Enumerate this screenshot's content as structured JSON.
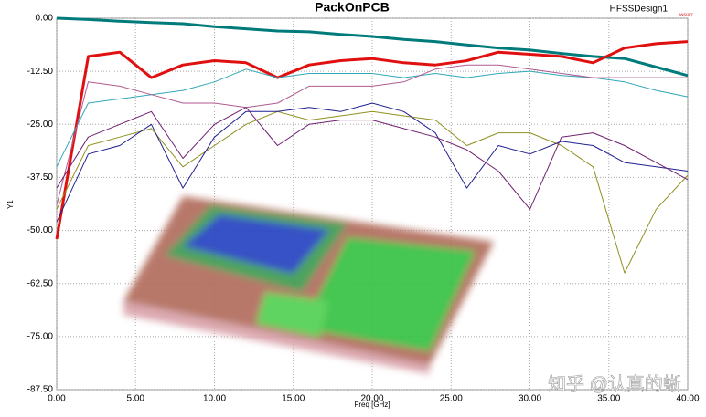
{
  "chart_data": {
    "type": "line",
    "title": "PackOnPCB",
    "design_label": "HFSSDesign1",
    "logo": "ANSOFT",
    "x_label": "Freq [GHz]",
    "y_label": "Y1",
    "watermark": "知乎 @认真的蜥",
    "x": [
      0,
      2,
      4,
      6,
      8,
      10,
      12,
      14,
      16,
      18,
      20,
      22,
      24,
      26,
      28,
      30,
      32,
      34,
      36,
      38,
      40
    ],
    "series": [
      {
        "color": "#007b7b",
        "width": 3,
        "values": [
          0,
          -0.3,
          -0.7,
          -1,
          -1.3,
          -2,
          -2.5,
          -3,
          -3.2,
          -3.8,
          -4.3,
          -5,
          -5.5,
          -6.3,
          -7,
          -7.5,
          -8.3,
          -9,
          -9.5,
          -11.5,
          -13.5
        ]
      },
      {
        "color": "#e01010",
        "width": 3,
        "values": [
          -52,
          -9,
          -8,
          -14,
          -11,
          -10,
          -10.5,
          -14,
          -11,
          -10,
          -9.5,
          -10.5,
          -11,
          -10,
          -8,
          -8.5,
          -9,
          -10.5,
          -7,
          -6,
          -5.5
        ]
      },
      {
        "color": "#30a8b8",
        "width": 1,
        "values": [
          -35,
          -20,
          -19,
          -18,
          -17,
          -15,
          -12,
          -14,
          -13,
          -13,
          -13,
          -14,
          -13,
          -14,
          -13,
          -12.5,
          -13.5,
          -14,
          -15,
          -17,
          -18.5
        ]
      },
      {
        "color": "#b05a90",
        "width": 1,
        "values": [
          -44,
          -15,
          -16,
          -18,
          -20,
          -20,
          -21,
          -20,
          -16,
          -16,
          -16,
          -15,
          -12,
          -11,
          -11,
          -12,
          -13,
          -14,
          -14,
          -14,
          -14
        ]
      },
      {
        "color": "#909020",
        "width": 1,
        "values": [
          -45,
          -30,
          -28,
          -26,
          -35,
          -30,
          -25,
          -22,
          -24,
          -23,
          -22,
          -23,
          -24,
          -30,
          -27,
          -27,
          -30,
          -35,
          -60,
          -45,
          -37
        ]
      },
      {
        "color": "#202090",
        "width": 1,
        "values": [
          -48,
          -32,
          -30,
          -25,
          -40,
          -28,
          -22,
          -22,
          -21,
          -22,
          -20,
          -22,
          -27,
          -40,
          -30,
          -32,
          -29,
          -30,
          -34,
          -35,
          -36
        ]
      },
      {
        "color": "#702070",
        "width": 1,
        "values": [
          -40,
          -28,
          -25,
          -22,
          -33,
          -25,
          -21,
          -30,
          -25,
          -24,
          -24,
          -26,
          -28,
          -31,
          -36,
          -45,
          -28,
          -27,
          -30,
          -34,
          -38
        ]
      }
    ],
    "xlim": [
      0,
      40
    ],
    "xticks": [
      {
        "value": 0,
        "label": "0.00"
      },
      {
        "value": 5,
        "label": "5.00"
      },
      {
        "value": 10,
        "label": "10.00"
      },
      {
        "value": 15,
        "label": "15.00"
      },
      {
        "value": 20,
        "label": "20.00"
      },
      {
        "value": 25,
        "label": "25.00"
      },
      {
        "value": 30,
        "label": "30.00"
      },
      {
        "value": 35,
        "label": "35.00"
      },
      {
        "value": 40,
        "label": "40.00"
      }
    ],
    "ylim": [
      -87.5,
      0
    ],
    "yticks": [
      {
        "value": 0,
        "label": "0.00"
      },
      {
        "value": -12.5,
        "label": "-12.50"
      },
      {
        "value": -25,
        "label": "-25.00"
      },
      {
        "value": -37.5,
        "label": "-37.50"
      },
      {
        "value": -50,
        "label": "-50.00"
      },
      {
        "value": -62.5,
        "label": "-62.50"
      },
      {
        "value": -75,
        "label": "-75.00"
      },
      {
        "value": -87.5,
        "label": "-87.50"
      }
    ],
    "grid": true
  }
}
